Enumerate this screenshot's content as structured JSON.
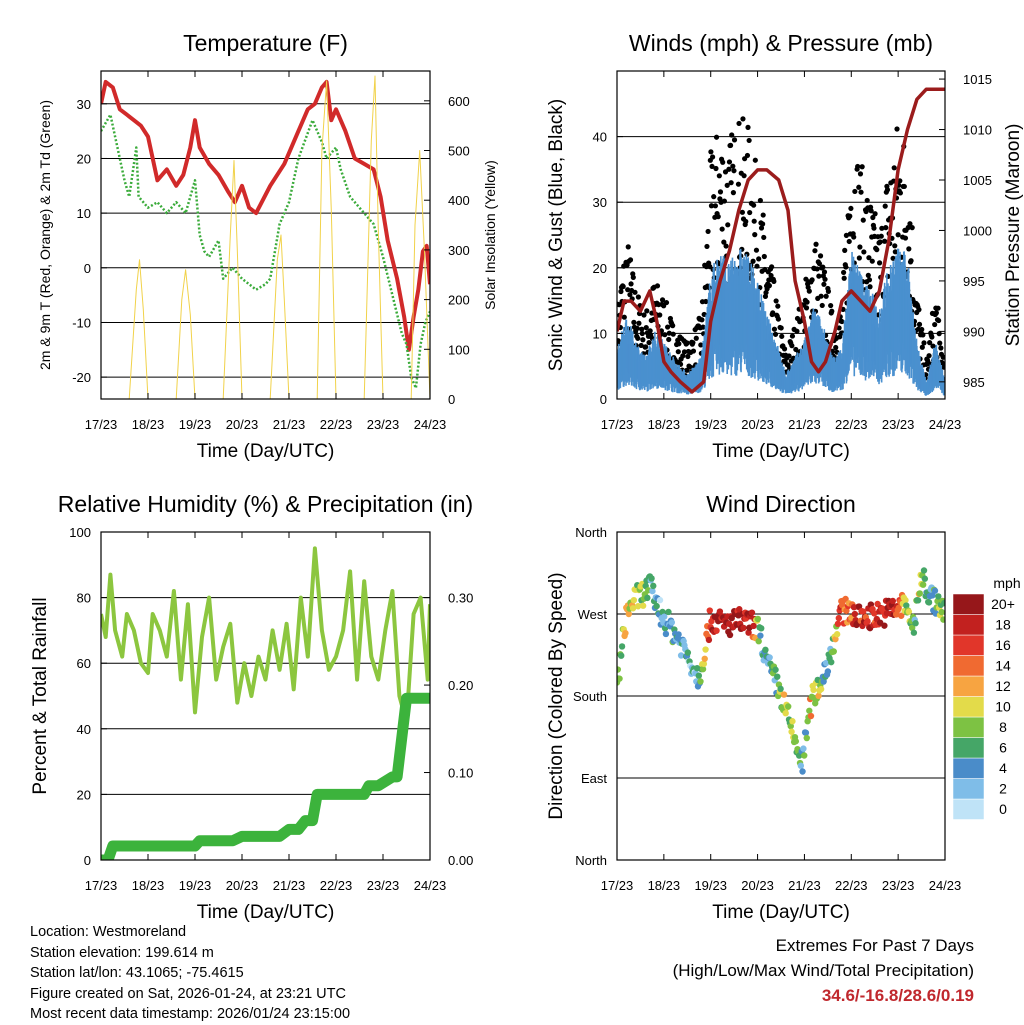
{
  "chart_data": [
    {
      "type": "line",
      "title": "Temperature (F)",
      "xlabel": "Time (Day/UTC)",
      "ylabel": "2m & 9m T (Red, Orange) & 2m Td (Green)",
      "y2label": "Solar Insolation (Yellow)",
      "x_ticks": [
        "17/23",
        "18/23",
        "19/23",
        "20/23",
        "21/23",
        "22/23",
        "23/23",
        "24/23"
      ],
      "ylim": [
        -24,
        36
      ],
      "y_ticks": [
        -20,
        -10,
        0,
        10,
        20,
        30
      ],
      "y2lim": [
        0,
        660
      ],
      "y2_ticks": [
        0,
        100,
        200,
        300,
        400,
        500,
        600
      ],
      "grid_y": [
        -20,
        -10,
        0,
        10,
        20,
        30
      ],
      "series": [
        {
          "name": "2m T",
          "color": "#d12a2a",
          "width": 4,
          "x": [
            0,
            0.1,
            0.25,
            0.4,
            0.55,
            0.7,
            0.85,
            1.0,
            1.2,
            1.4,
            1.6,
            1.75,
            1.9,
            2.0,
            2.1,
            2.3,
            2.5,
            2.7,
            2.85,
            3.0,
            3.15,
            3.3,
            3.6,
            3.9,
            4.2,
            4.4,
            4.55,
            4.7,
            4.8,
            4.9,
            5.0,
            5.2,
            5.4,
            5.6,
            5.8,
            5.95,
            6.1,
            6.3,
            6.45,
            6.55,
            6.65,
            6.75,
            6.85,
            6.93,
            7.0
          ],
          "y": [
            30,
            34,
            33,
            29,
            28,
            27,
            26,
            24,
            16,
            18,
            15,
            17,
            22,
            27,
            22,
            19,
            17,
            14,
            12,
            15,
            11,
            10,
            15,
            19,
            25,
            29,
            30,
            33,
            34,
            27,
            29,
            25,
            20,
            19,
            18,
            13,
            5,
            -2,
            -9,
            -15,
            -9,
            -4,
            3,
            4,
            -3
          ]
        },
        {
          "name": "2m Td",
          "color": "#3bab3b",
          "width": 2.5,
          "dash": "2 2",
          "x": [
            0,
            0.2,
            0.3,
            0.5,
            0.6,
            0.75,
            0.8,
            1.0,
            1.2,
            1.4,
            1.6,
            1.8,
            2.0,
            2.1,
            2.2,
            2.3,
            2.5,
            2.6,
            2.8,
            3.0,
            3.15,
            3.3,
            3.5,
            3.6,
            3.8,
            4.0,
            4.2,
            4.5,
            4.7,
            4.8,
            5.0,
            5.1,
            5.3,
            5.5,
            5.8,
            6.0,
            6.2,
            6.4,
            6.5,
            6.6,
            6.7,
            6.8,
            6.9,
            7.0
          ],
          "y": [
            25,
            28,
            24,
            16,
            13,
            22,
            13,
            11,
            12,
            10,
            12,
            10,
            16,
            6,
            3,
            2,
            5,
            -2,
            0,
            -2,
            -3,
            -4,
            -3,
            -2,
            8,
            12,
            20,
            27,
            23,
            20,
            22,
            18,
            13,
            11,
            8,
            2,
            -5,
            -12,
            -14,
            -20,
            -22,
            -14,
            -10,
            -8
          ]
        },
        {
          "name": "Solar Insolation",
          "axis": "right",
          "color": "#f1d24a",
          "width": 1,
          "x": [
            0,
            0.6,
            0.75,
            0.82,
            0.9,
            1.0,
            1.6,
            1.72,
            1.8,
            1.9,
            2.0,
            2.6,
            2.75,
            2.83,
            2.9,
            3.0,
            3.6,
            3.75,
            3.83,
            3.9,
            4.0,
            4.6,
            4.7,
            4.8,
            4.9,
            5.0,
            5.6,
            5.75,
            5.83,
            5.9,
            6.0,
            6.6,
            6.68,
            6.78,
            6.88,
            7.0
          ],
          "y": [
            0,
            0,
            220,
            280,
            180,
            0,
            0,
            200,
            260,
            170,
            0,
            0,
            330,
            480,
            300,
            0,
            0,
            280,
            330,
            200,
            0,
            0,
            500,
            640,
            380,
            0,
            0,
            520,
            650,
            340,
            0,
            0,
            350,
            500,
            300,
            0
          ]
        }
      ]
    },
    {
      "type": "scatter",
      "title": "Winds (mph) & Pressure (mb)",
      "xlabel": "Time (Day/UTC)",
      "ylabel": "Sonic Wind & Gust (Blue, Black)",
      "y2label": "Station Pressure (Maroon)",
      "x_ticks": [
        "17/23",
        "18/23",
        "19/23",
        "20/23",
        "21/23",
        "22/23",
        "23/23",
        "24/23"
      ],
      "ylim": [
        0,
        50
      ],
      "y_ticks": [
        0,
        10,
        20,
        30,
        40
      ],
      "y2lim": [
        983.3,
        1015.8
      ],
      "y2_ticks": [
        985,
        990,
        995,
        1000,
        1005,
        1010,
        1015
      ],
      "grid_y": [
        10,
        20,
        30,
        40
      ],
      "series": [
        {
          "name": "Gust",
          "mark": "dot",
          "color": "#000000",
          "x": [
            0,
            0.2,
            0.4,
            0.6,
            0.8,
            1.0,
            1.2,
            1.5,
            1.8,
            2.0,
            2.2,
            2.4,
            2.6,
            2.8,
            3.0,
            3.2,
            3.4,
            3.6,
            3.8,
            4.0,
            4.2,
            4.4,
            4.6,
            4.8,
            5.0,
            5.2,
            5.4,
            5.6,
            5.8,
            6.0,
            6.2,
            6.4,
            6.6,
            6.8,
            7.0
          ],
          "y": [
            10,
            18,
            12,
            9,
            13,
            11,
            8,
            6,
            9,
            26,
            30,
            28,
            30,
            29,
            24,
            17,
            11,
            5,
            8,
            12,
            18,
            15,
            9,
            10,
            30,
            25,
            22,
            18,
            26,
            30,
            28,
            12,
            4,
            12,
            3
          ]
        },
        {
          "name": "Wind",
          "mark": "band",
          "color": "#4a90cf",
          "x": [
            0,
            0.2,
            0.4,
            0.6,
            0.8,
            1.0,
            1.2,
            1.5,
            1.8,
            2.0,
            2.2,
            2.4,
            2.6,
            2.8,
            3.0,
            3.2,
            3.4,
            3.6,
            3.8,
            4.0,
            4.2,
            4.4,
            4.6,
            4.8,
            5.0,
            5.2,
            5.4,
            5.6,
            5.8,
            6.0,
            6.2,
            6.4,
            6.6,
            6.8,
            7.0
          ],
          "y": [
            6,
            10,
            7,
            5,
            8,
            7,
            5,
            3,
            5,
            15,
            18,
            16,
            18,
            17,
            14,
            10,
            7,
            3,
            5,
            7,
            11,
            9,
            5,
            6,
            18,
            15,
            13,
            11,
            16,
            18,
            17,
            7,
            2,
            7,
            2
          ]
        },
        {
          "name": "Station Pressure",
          "axis": "right",
          "color": "#9b1c1c",
          "width": 3.5,
          "x": [
            0,
            0.15,
            0.3,
            0.5,
            0.7,
            0.85,
            1.0,
            1.15,
            1.35,
            1.6,
            1.85,
            2.0,
            2.2,
            2.4,
            2.6,
            2.8,
            3.0,
            3.2,
            3.45,
            3.65,
            3.8,
            4.0,
            4.15,
            4.3,
            4.45,
            4.65,
            4.8,
            5.0,
            5.2,
            5.4,
            5.6,
            5.8,
            6.0,
            6.2,
            6.4,
            6.6,
            6.75,
            6.9,
            7.0
          ],
          "y": [
            990,
            993,
            993,
            992,
            994,
            991,
            987,
            986,
            985,
            984,
            985,
            991,
            995,
            998,
            1002,
            1005,
            1006,
            1006,
            1005,
            1002,
            995,
            991,
            987,
            986,
            987,
            990,
            993,
            994,
            993,
            992,
            994,
            999,
            1006,
            1010,
            1013,
            1014,
            1014,
            1014,
            1014
          ]
        }
      ]
    },
    {
      "type": "line",
      "title": "Relative Humidity (%) & Precipitation (in)",
      "xlabel": "Time (Day/UTC)",
      "ylabel": "Percent & Total Rainfall",
      "x_ticks": [
        "17/23",
        "18/23",
        "19/23",
        "20/23",
        "21/23",
        "22/23",
        "23/23",
        "24/23"
      ],
      "ylim": [
        0,
        100
      ],
      "y_ticks": [
        0,
        20,
        40,
        60,
        80,
        100
      ],
      "y2lim": [
        0,
        0.375
      ],
      "y2_ticks": [
        "0.00",
        "0.10",
        "0.20",
        "0.30"
      ],
      "grid_y": [
        20,
        40,
        60,
        80
      ],
      "series": [
        {
          "name": "Relative Humidity",
          "color": "#8cc63f",
          "width": 4,
          "x": [
            0,
            0.1,
            0.2,
            0.3,
            0.45,
            0.55,
            0.7,
            0.85,
            1.0,
            1.1,
            1.25,
            1.4,
            1.55,
            1.7,
            1.85,
            2.0,
            2.15,
            2.3,
            2.45,
            2.6,
            2.75,
            2.9,
            3.05,
            3.2,
            3.35,
            3.5,
            3.65,
            3.8,
            3.95,
            4.1,
            4.25,
            4.4,
            4.55,
            4.7,
            4.85,
            5.0,
            5.15,
            5.3,
            5.45,
            5.6,
            5.75,
            5.9,
            6.05,
            6.2,
            6.35,
            6.5,
            6.65,
            6.8,
            6.95,
            7.0
          ],
          "y": [
            75,
            68,
            87,
            70,
            62,
            75,
            70,
            60,
            57,
            75,
            70,
            62,
            82,
            55,
            78,
            45,
            68,
            80,
            55,
            65,
            72,
            48,
            60,
            50,
            62,
            55,
            70,
            58,
            72,
            52,
            80,
            62,
            95,
            70,
            58,
            62,
            70,
            88,
            55,
            85,
            62,
            55,
            70,
            82,
            50,
            42,
            75,
            80,
            55,
            78
          ]
        },
        {
          "name": "Total Rainfall",
          "axis": "right",
          "color": "#3cb33c",
          "width": 11,
          "x": [
            0,
            0.15,
            0.25,
            0.5,
            0.8,
            1.2,
            1.6,
            2.0,
            2.1,
            2.4,
            2.8,
            3.0,
            3.2,
            3.6,
            3.8,
            4.0,
            4.2,
            4.35,
            4.5,
            4.6,
            4.85,
            5.2,
            5.6,
            5.7,
            5.9,
            6.2,
            6.3,
            6.5,
            6.9,
            7.0
          ],
          "y": [
            0,
            0,
            0.016,
            0.016,
            0.016,
            0.016,
            0.016,
            0.016,
            0.022,
            0.022,
            0.022,
            0.027,
            0.027,
            0.027,
            0.027,
            0.035,
            0.035,
            0.045,
            0.045,
            0.075,
            0.075,
            0.075,
            0.075,
            0.085,
            0.085,
            0.095,
            0.095,
            0.185,
            0.185,
            0.185
          ]
        }
      ]
    },
    {
      "type": "scatter",
      "title": "Wind Direction",
      "xlabel": "Time (Day/UTC)",
      "ylabel": "Direction (Colored By Speed)",
      "x_ticks": [
        "17/23",
        "18/23",
        "19/23",
        "20/23",
        "21/23",
        "22/23",
        "23/23",
        "24/23"
      ],
      "y_categories": [
        "North",
        "East",
        "South",
        "West",
        "North"
      ],
      "ylim": [
        0,
        360
      ],
      "grid_y": [
        90,
        180,
        270
      ],
      "legend": {
        "title": "mph",
        "labels": [
          "0",
          "2",
          "4",
          "6",
          "8",
          "10",
          "12",
          "14",
          "16",
          "18",
          "20+"
        ],
        "colors": [
          "#bfe3f7",
          "#7fbde8",
          "#4a8cc9",
          "#45a667",
          "#7dc243",
          "#e3db4a",
          "#f7a441",
          "#f06a31",
          "#e1362a",
          "#c2211f",
          "#96171a"
        ]
      },
      "series": [
        {
          "name": "Direction",
          "x": [
            0,
            0.2,
            0.35,
            0.5,
            0.7,
            0.9,
            1.0,
            1.15,
            1.35,
            1.55,
            1.75,
            2.0,
            2.3,
            2.6,
            2.9,
            3.05,
            3.2,
            3.4,
            3.6,
            3.8,
            3.95,
            4.15,
            4.35,
            4.55,
            4.75,
            4.95,
            5.15,
            5.4,
            5.65,
            5.9,
            6.15,
            6.35,
            6.5,
            6.65,
            6.85,
            7.0
          ],
          "y": [
            190,
            270,
            285,
            290,
            300,
            275,
            265,
            255,
            240,
            220,
            200,
            265,
            258,
            262,
            258,
            250,
            215,
            195,
            165,
            130,
            105,
            175,
            195,
            225,
            270,
            275,
            265,
            268,
            270,
            275,
            280,
            255,
            315,
            292,
            280,
            270
          ],
          "speed": [
            6,
            10,
            10,
            8,
            5,
            3,
            4,
            5,
            4,
            3,
            4,
            18,
            19,
            20,
            17,
            6,
            5,
            6,
            10,
            8,
            4,
            12,
            7,
            3,
            16,
            14,
            18,
            17,
            18,
            19,
            10,
            5,
            12,
            4,
            8,
            6
          ]
        }
      ]
    }
  ],
  "info": {
    "location": "Location: Westmoreland",
    "elevation": "Station elevation: 199.614 m",
    "latlon": "Station lat/lon: 43.1065; -75.4615",
    "created": "Figure created on Sat, 2026-01-24, at 23:21 UTC",
    "recent": "Most recent data timestamp: 2026/01/24 23:15:00"
  },
  "extremes": {
    "title": "Extremes For Past 7 Days",
    "subtitle": "(High/Low/Max Wind/Total Precipitation)",
    "values": "34.6/-16.8/28.6/0.19"
  }
}
